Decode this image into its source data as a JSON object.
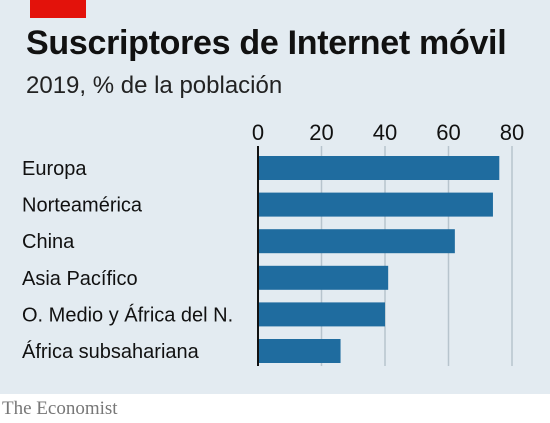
{
  "title": "Suscriptores de Internet móvil",
  "subtitle": "2019, % de la población",
  "source": "The Economist",
  "colors": {
    "background": "#e3ebf1",
    "bar": "#1f6c9f",
    "brand_tag": "#e3120b",
    "grid": "#b7c4cd",
    "text": "#111111"
  },
  "chart_data": {
    "type": "bar",
    "orientation": "horizontal",
    "title": "Suscriptores de Internet móvil",
    "subtitle": "2019, % de la población",
    "categories": [
      "Europa",
      "Norteamérica",
      "China",
      "Asia Pacífico",
      "O. Medio y África del N.",
      "África subsahariana"
    ],
    "values": [
      76,
      74,
      62,
      41,
      40,
      26
    ],
    "xlim": [
      0,
      80
    ],
    "xticks": [
      0,
      20,
      40,
      60,
      80
    ],
    "xtick_labels": [
      "0",
      "20",
      "40",
      "60",
      "80"
    ],
    "axis_position": "top",
    "grid": true,
    "legend": "none"
  }
}
